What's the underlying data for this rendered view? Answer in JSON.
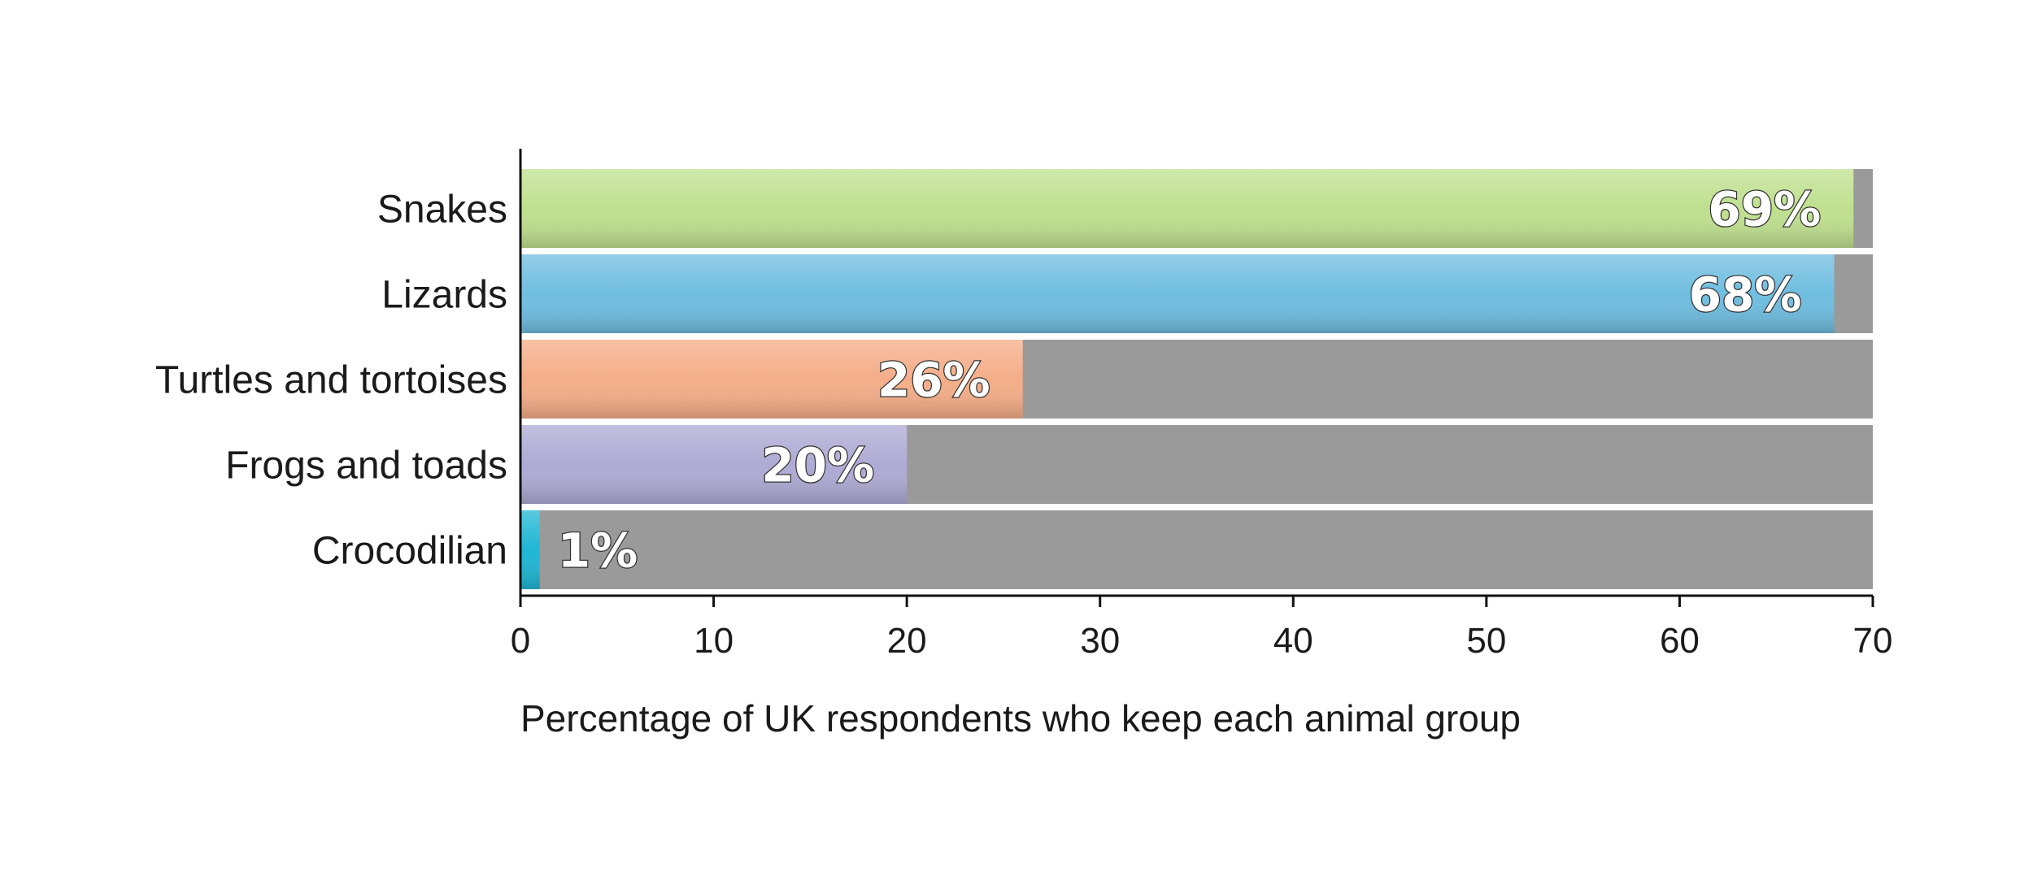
{
  "chart_data": {
    "type": "bar",
    "orientation": "horizontal",
    "categories": [
      "Snakes",
      "Lizards",
      "Turtles and tortoises",
      "Frogs and toads",
      "Crocodilian"
    ],
    "values": [
      69,
      68,
      26,
      20,
      1
    ],
    "value_labels": [
      "69%",
      "68%",
      "26%",
      "20%",
      "1%"
    ],
    "bar_colors": [
      "#bfe08f",
      "#6fbde0",
      "#f4ad88",
      "#aeaad4",
      "#1fb6d4"
    ],
    "background_bar_color": "#9a9a9a",
    "xlabel": "Percentage of UK respondents who keep each animal group",
    "ylabel": "",
    "title": "",
    "xlim": [
      0,
      70
    ],
    "xticks": [
      0,
      10,
      20,
      30,
      40,
      50,
      60,
      70
    ],
    "grid": false,
    "legend": "none"
  }
}
